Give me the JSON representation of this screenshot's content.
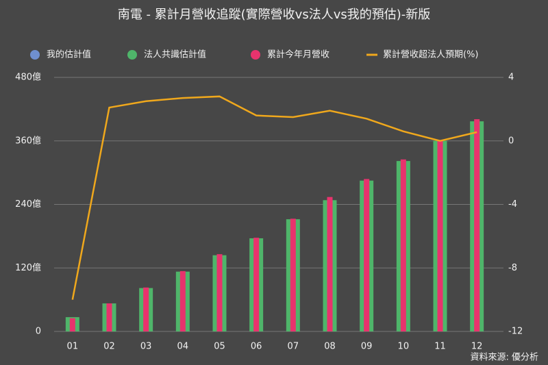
{
  "chart_data": {
    "type": "bar",
    "title": "南電 - 累計月營收追蹤(實際營收vs法人vs我的預估)-新版",
    "source": "資料來源: 優分析",
    "categories": [
      "01",
      "02",
      "03",
      "04",
      "05",
      "06",
      "07",
      "08",
      "09",
      "10",
      "11",
      "12"
    ],
    "series": [
      {
        "name": "我的估計值",
        "color": "#6f8fcf",
        "type": "bar",
        "values": [
          null,
          null,
          null,
          null,
          null,
          null,
          null,
          null,
          null,
          null,
          null,
          null
        ]
      },
      {
        "name": "法人共識估計值",
        "color": "#4fb56a",
        "type": "bar",
        "values": [
          27,
          53,
          82,
          113,
          144,
          176,
          212,
          248,
          285,
          322,
          360,
          397
        ]
      },
      {
        "name": "累計今年月營收",
        "color": "#e8336d",
        "type": "bar",
        "values": [
          25,
          53,
          83,
          114,
          146,
          177,
          213,
          254,
          288,
          325,
          361,
          401
        ]
      },
      {
        "name": "累計營收超法人預期(%)",
        "color": "#f0a81c",
        "type": "line",
        "axis": "y2",
        "values": [
          -10,
          2.1,
          2.5,
          2.7,
          2.8,
          1.6,
          1.5,
          1.9,
          1.4,
          0.6,
          0,
          0.55
        ]
      }
    ],
    "ylim": [
      0,
      480
    ],
    "yticks": [
      0,
      {
        "value": 120,
        "label": "120億"
      },
      {
        "value": 240,
        "label": "240億"
      },
      {
        "value": 360,
        "label": "360億"
      },
      {
        "value": 480,
        "label": "480億"
      }
    ],
    "y2lim": [
      -12,
      4
    ],
    "y2ticks": [
      -12,
      -8,
      -4,
      0,
      4
    ],
    "grid": true
  }
}
